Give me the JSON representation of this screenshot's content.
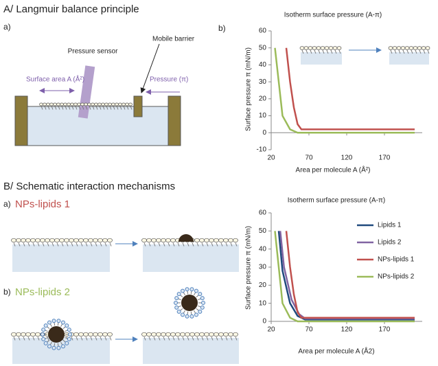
{
  "figure": {
    "section_a_title": "A/ Langmuir balance principle",
    "panel_a_label": "a)",
    "pressure_sensor": "Pressure sensor",
    "mobile_barrier": "Mobile barrier",
    "surface_area": "Surface area A (Å²)",
    "pressure": "Pressure (π)",
    "panel_b_label": "b)",
    "section_b_title": "B/ Schematic interaction mechanisms",
    "panel_ba_label": "a)",
    "panel_ba_name": "NPs-lipids 1",
    "panel_bb_label": "b)",
    "panel_bb_name": "NPs-lipids 2"
  },
  "chart_data": [
    {
      "type": "line",
      "title": "Isotherm surface pressure (A-π)",
      "x_label": "Area per molecule A (Å²)",
      "y_label": "Surface pressure π (mN/m)",
      "xlim": [
        20,
        220
      ],
      "xticks": [
        20,
        70,
        120,
        170
      ],
      "ylim": [
        -10,
        60
      ],
      "yticks": [
        -10,
        0,
        10,
        20,
        30,
        40,
        50,
        60
      ],
      "series": [
        {
          "color": "#c0504d",
          "x": [
            40,
            45,
            50,
            55,
            60,
            70,
            210
          ],
          "values": [
            50,
            30,
            15,
            5,
            2,
            2,
            2
          ]
        },
        {
          "color": "#9bbb59",
          "x": [
            25,
            30,
            35,
            45,
            55,
            70,
            210
          ],
          "values": [
            50,
            30,
            10,
            2,
            0,
            0,
            0
          ]
        }
      ]
    },
    {
      "type": "line",
      "title": "Isotherm surface pressure (A-π)",
      "x_label": "Area per molecule A (Å2)",
      "y_label": "Surface pressure π (mN/m)",
      "xlim": [
        20,
        220
      ],
      "xticks": [
        20,
        70,
        120,
        170
      ],
      "ylim": [
        0,
        60
      ],
      "yticks": [
        0,
        10,
        20,
        30,
        40,
        50,
        60
      ],
      "legend": "right",
      "series": [
        {
          "name": "Lipids 1",
          "color": "#1f497d",
          "x": [
            30,
            35,
            45,
            55,
            65,
            70,
            210
          ],
          "values": [
            50,
            28,
            10,
            3,
            1,
            1,
            1
          ]
        },
        {
          "name": "Lipids 2",
          "color": "#8064a2",
          "x": [
            32,
            37,
            47,
            57,
            65,
            70,
            210
          ],
          "values": [
            50,
            30,
            12,
            4,
            1.5,
            1.5,
            1.5
          ]
        },
        {
          "name": "NPs-lipids 1",
          "color": "#c0504d",
          "x": [
            40,
            45,
            50,
            55,
            60,
            70,
            210
          ],
          "values": [
            50,
            30,
            15,
            5,
            2,
            2,
            2
          ]
        },
        {
          "name": "NPs-lipids 2",
          "color": "#9bbb59",
          "x": [
            25,
            30,
            35,
            45,
            55,
            70,
            210
          ],
          "values": [
            50,
            30,
            10,
            2,
            0,
            0,
            0
          ]
        }
      ]
    }
  ]
}
